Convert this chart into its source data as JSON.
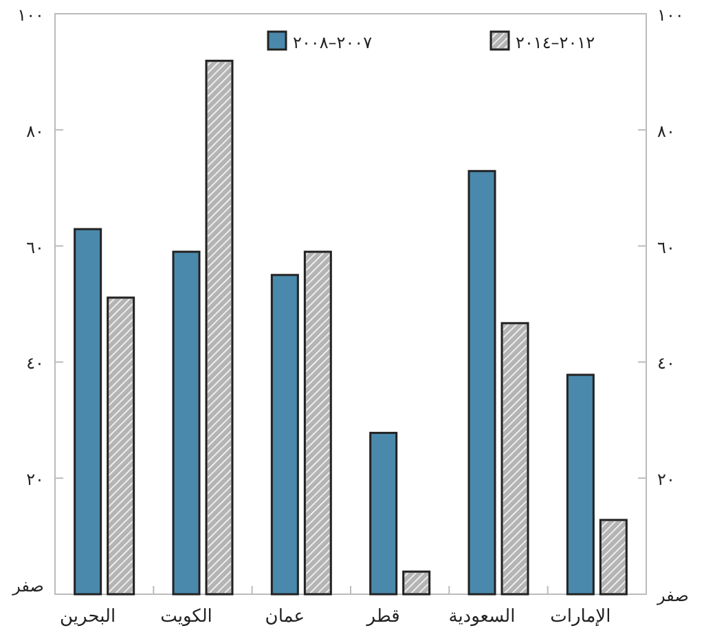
{
  "chart_data": {
    "type": "bar",
    "categories": [
      "البحرين",
      "الكويت",
      "عمان",
      "قطر",
      "السعودية",
      "الإمارات"
    ],
    "series": [
      {
        "name": "٢٠٠٧–٢٠٠٨",
        "color": "#4a89ab",
        "values": [
          62.9,
          59,
          55,
          27.8,
          72.9,
          37.8
        ]
      },
      {
        "name": "٢٠١٢–٢٠١٤",
        "color": "#b4b4b4",
        "values": [
          51.1,
          91.9,
          59,
          3.9,
          46.7,
          12.8
        ]
      }
    ],
    "ylim": [
      0,
      100
    ],
    "yticks": [
      {
        "value": 0,
        "label": "صفر"
      },
      {
        "value": 20,
        "label": "٢٠"
      },
      {
        "value": 40,
        "label": "٤٠"
      },
      {
        "value": 60,
        "label": "٦٠"
      },
      {
        "value": 80,
        "label": "٨٠"
      },
      {
        "value": 100,
        "label": "١٠٠"
      }
    ],
    "y2lim": [
      0,
      100
    ],
    "y2ticks": [
      {
        "value": 0,
        "label": "صفر"
      },
      {
        "value": 20,
        "label": "٢٠"
      },
      {
        "value": 40,
        "label": "٤٠"
      },
      {
        "value": 60,
        "label": "٦٠"
      },
      {
        "value": 80,
        "label": "٨٠"
      },
      {
        "value": 100,
        "label": "١٠٠"
      }
    ],
    "grid": false,
    "legend": "top right"
  }
}
